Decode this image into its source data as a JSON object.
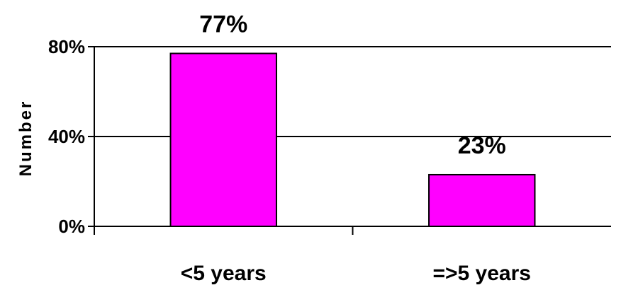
{
  "chart_data": {
    "type": "bar",
    "categories": [
      "<5 years",
      "=>5 years"
    ],
    "values": [
      77,
      23
    ],
    "data_labels": [
      "77%",
      "23%"
    ],
    "ylabel": "Number",
    "ylim": [
      0,
      80
    ],
    "yticks": [
      0,
      40,
      80
    ],
    "ytick_labels": [
      "0%",
      "40%",
      "80%"
    ],
    "grid": true,
    "legend": "none",
    "bar_color": "#ff00ff",
    "bar_edge_color": "#000000"
  }
}
